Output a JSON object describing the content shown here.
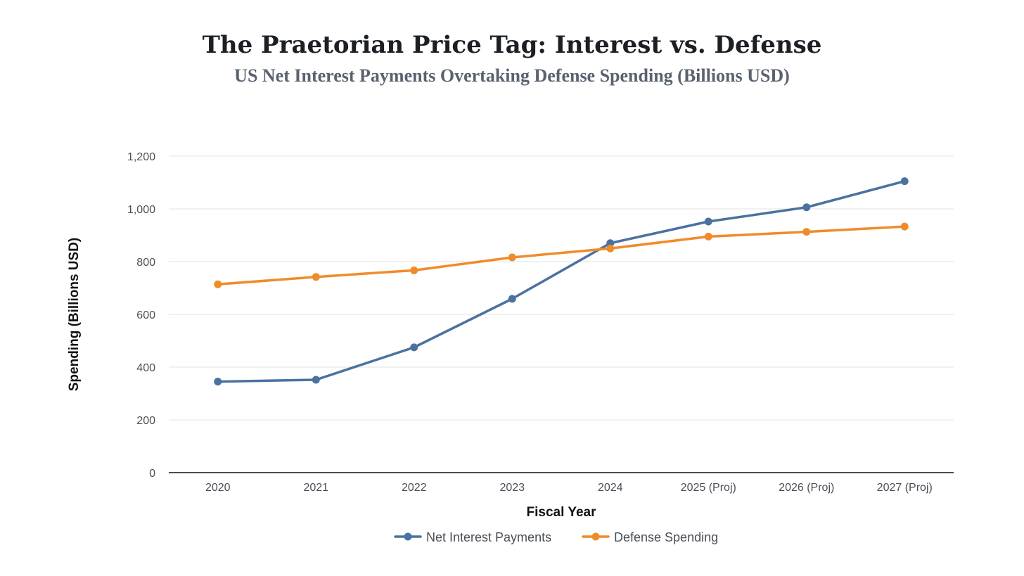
{
  "header": {
    "title": "The Praetorian Price Tag: Interest vs. Defense",
    "subtitle": "US Net Interest Payments Overtaking Defense Spending (Billions USD)"
  },
  "colors": {
    "interest": "#4a72a0",
    "defense": "#ef8c2a",
    "grid": "#e3e3e3",
    "axis": "#111111"
  },
  "chart_data": {
    "type": "line",
    "title": "The Praetorian Price Tag: Interest vs. Defense",
    "subtitle": "US Net Interest Payments Overtaking Defense Spending (Billions USD)",
    "xlabel": "Fiscal Year",
    "ylabel": "Spending (Billions USD)",
    "ylim": [
      0,
      1200
    ],
    "yticks": [
      0,
      200,
      400,
      600,
      800,
      1000,
      1200
    ],
    "ytick_labels": [
      "0",
      "200",
      "400",
      "600",
      "800",
      "1,000",
      "1,200"
    ],
    "categories": [
      "2020",
      "2021",
      "2022",
      "2023",
      "2024",
      "2025 (Proj)",
      "2026 (Proj)",
      "2027 (Proj)"
    ],
    "grid": true,
    "legend_position": "bottom-center",
    "series": [
      {
        "name": "Net Interest Payments",
        "color": "#4a72a0",
        "values": [
          345,
          352,
          475,
          659,
          870,
          952,
          1006,
          1105
        ]
      },
      {
        "name": "Defense Spending",
        "color": "#ef8c2a",
        "values": [
          714,
          742,
          767,
          816,
          850,
          895,
          913,
          933
        ]
      }
    ]
  }
}
